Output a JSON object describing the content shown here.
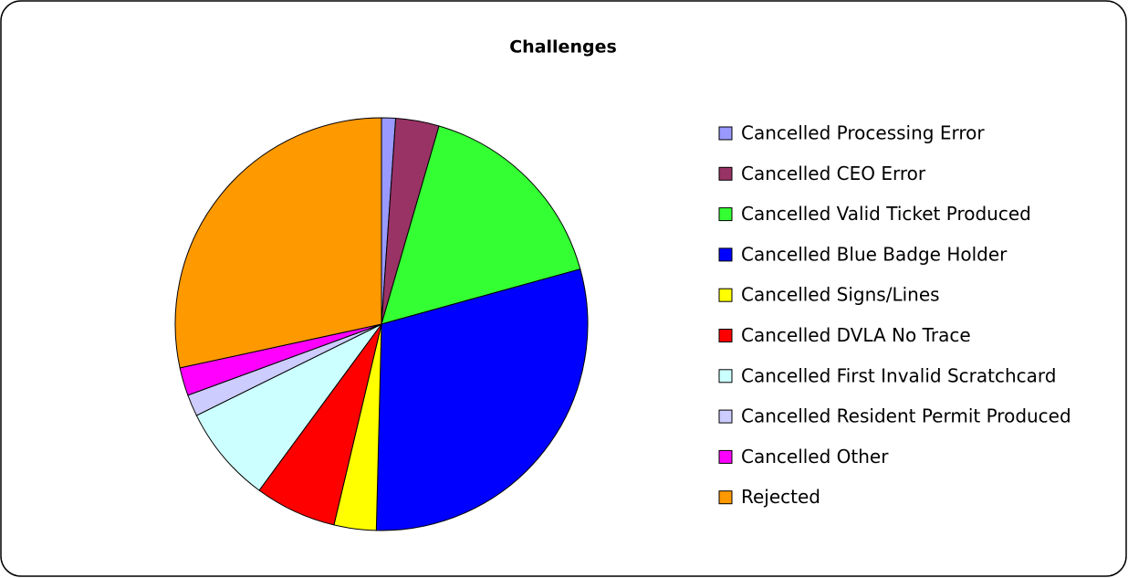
{
  "chart_data": {
    "type": "pie",
    "title": "Challenges",
    "categories": [
      "Cancelled Processing Error",
      "Cancelled CEO Error",
      "Cancelled Valid Ticket Produced",
      "Cancelled Blue Badge Holder",
      "Cancelled Signs/Lines",
      "Cancelled DVLA No Trace",
      "Cancelled First Invalid Scratchcard",
      "Cancelled Resident Permit Produced",
      "Cancelled Other",
      "Rejected"
    ],
    "values": [
      1.1,
      3.4,
      16.2,
      29.7,
      3.3,
      6.4,
      7.6,
      1.7,
      2.2,
      28.4
    ],
    "colors": [
      "#9999ff",
      "#993366",
      "#33ff33",
      "#0000ff",
      "#ffff00",
      "#ff0000",
      "#ccffff",
      "#ccccff",
      "#ff00ff",
      "#ff9900"
    ],
    "legend": "right"
  }
}
